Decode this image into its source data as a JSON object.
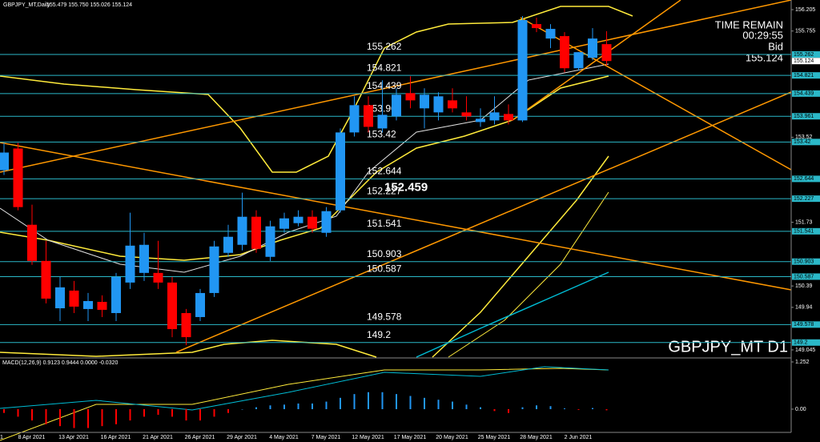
{
  "chart_data": {
    "type": "candlestick",
    "title": "GBPJPY_MT,Daily",
    "header_values": "155.479 155.750 155.026 155.124",
    "categories": [
      "6 Apr 2021",
      null,
      null,
      "8 Apr 2021",
      null,
      null,
      "13 Apr 2021",
      null,
      null,
      "16 Apr 2021",
      null,
      null,
      "21 Apr 2021",
      null,
      null,
      "26 Apr 2021",
      null,
      null,
      "29 Apr 2021",
      null,
      null,
      "4 May 2021",
      null,
      null,
      "7 May 2021",
      null,
      null,
      "12 May 2021",
      null,
      null,
      "17 May 2021",
      null,
      null,
      "20 May 2021",
      null,
      null,
      "25 May 2021",
      null,
      null,
      "28 May 2021",
      null,
      null,
      "2 Jun 2021",
      null
    ],
    "open": [
      152.827,
      153.283,
      151.678,
      150.918,
      149.921,
      150.293,
      149.905,
      150.056,
      149.82,
      150.462,
      150.665,
      150.665,
      150.462,
      149.82,
      149.736,
      150.242,
      151.087,
      151.256,
      151.847,
      151.003,
      151.594,
      151.712,
      151.847,
      151.509,
      151.982,
      153.621,
      154.195,
      153.705,
      153.959,
      154.448,
      154.128,
      154.043,
      154.296,
      154.043,
      153.84,
      153.874,
      154.009,
      153.874,
      155.901,
      155.597,
      155.648,
      154.972,
      155.192,
      155.479
    ],
    "high": [
      153.401,
      153.401,
      152.1,
      151.34,
      150.58,
      150.496,
      150.242,
      150.192,
      150.665,
      151.932,
      151.509,
      151.34,
      150.58,
      149.905,
      150.327,
      151.34,
      151.678,
      152.354,
      151.982,
      151.763,
      151.932,
      151.982,
      151.982,
      152.05,
      153.705,
      154.381,
      154.381,
      154.719,
      154.55,
      154.803,
      154.55,
      154.465,
      154.55,
      154.381,
      154.128,
      154.381,
      154.212,
      156.07,
      156.036,
      155.901,
      155.732,
      155.31,
      155.817,
      155.75
    ],
    "low": [
      152.726,
      151.982,
      150.834,
      150.023,
      149.651,
      149.82,
      149.651,
      149.736,
      149.651,
      150.327,
      150.496,
      150.327,
      149.313,
      149.144,
      149.651,
      150.158,
      151.003,
      151.138,
      151.087,
      150.918,
      151.509,
      151.645,
      151.509,
      151.425,
      151.932,
      153.536,
      153.621,
      153.621,
      153.874,
      154.128,
      153.705,
      153.874,
      154.043,
      153.874,
      153.739,
      153.79,
      153.79,
      153.84,
      155.732,
      155.395,
      154.888,
      154.921,
      155.141,
      155.026
    ],
    "close": [
      153.198,
      152.05,
      150.918,
      150.124,
      150.361,
      149.955,
      150.073,
      149.888,
      150.58,
      151.239,
      151.256,
      150.462,
      149.482,
      149.313,
      150.242,
      151.222,
      151.425,
      151.847,
      151.171,
      151.645,
      151.813,
      151.847,
      151.594,
      151.965,
      153.621,
      154.195,
      153.739,
      153.992,
      154.415,
      154.296,
      154.415,
      154.381,
      154.128,
      153.959,
      153.908,
      154.043,
      153.874,
      155.986,
      155.817,
      155.8,
      154.972,
      155.31,
      155.597,
      155.124
    ],
    "up_color": "#2196f3",
    "down_color": "#ff0000",
    "ylim": [
      148.876,
      156.408
    ],
    "yticks": [
      156.205,
      155.755,
      153.52,
      151.73,
      150.39,
      149.94,
      149.045
    ],
    "levels": [
      155.262,
      154.821,
      154.439,
      153.961,
      153.42,
      152.644,
      152.227,
      151.541,
      150.903,
      150.587,
      149.578,
      149.2
    ],
    "level_color": "#2bb8c8",
    "price_marker": 152.459,
    "time_remain_label": "TIME REMAIN",
    "time_remain": "00:29:55",
    "bid_label": "Bid",
    "bid": 155.124,
    "symbol_label": "GBPJPY_MT D1",
    "macd": {
      "label": "MACD(12,26,9) 0.9123 0.9444 0.0000 -0.0320",
      "ylim": [
        -0.616,
        1.337
      ],
      "yticks": [
        1.252,
        {
          "value": 0,
          "label": "0.00"
        }
      ],
      "histogram": [
        -0.1,
        -0.2,
        -0.3,
        -0.4,
        -0.45,
        -0.5,
        -0.5,
        -0.45,
        -0.4,
        -0.3,
        -0.2,
        -0.15,
        -0.2,
        -0.3,
        -0.3,
        -0.2,
        -0.1,
        0,
        0.05,
        0.1,
        0.12,
        0.15,
        0.15,
        0.2,
        0.3,
        0.4,
        0.45,
        0.45,
        0.4,
        0.35,
        0.3,
        0.25,
        0.2,
        0.12,
        0.05,
        -0.05,
        -0.1,
        0.05,
        0.1,
        0.08,
        0.02,
        -0.02,
        0.03,
        -0.03
      ]
    }
  }
}
